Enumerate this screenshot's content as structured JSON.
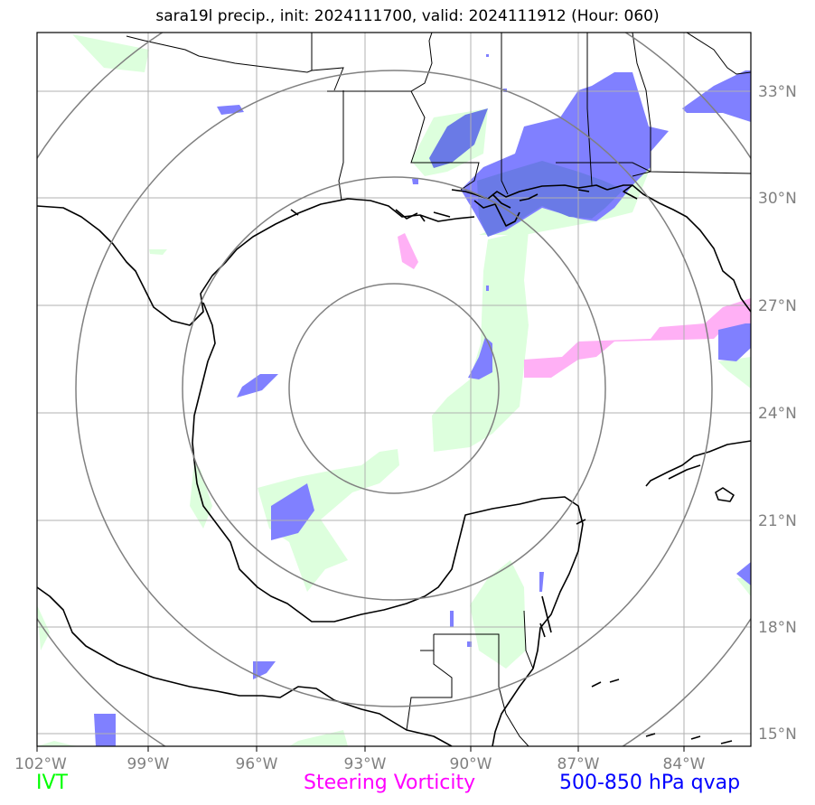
{
  "title": "sara19l precip., init: 2024111700, valid: 2024111912 (Hour: 060)",
  "map": {
    "lon_labels": [
      "102°W",
      "99°W",
      "96°W",
      "93°W",
      "90°W",
      "87°W",
      "84°W"
    ],
    "lat_labels": [
      "33°N",
      "30°N",
      "27°N",
      "24°N",
      "21°N",
      "18°N",
      "15°N"
    ]
  },
  "legend": {
    "ivt": {
      "label": "IVT",
      "color": "#00ff00"
    },
    "vorticity": {
      "label": "Steering Vorticity",
      "color": "#ff00ff"
    },
    "qvap": {
      "label": "500-850 hPa qvap",
      "color": "#0000ff"
    }
  },
  "colors": {
    "ivt_fill": "#ddffdd",
    "vort_fill": "#ffb0f5",
    "qvap_fill": "#8080ff",
    "qvap_dark": "#6a7ae6",
    "rings": "#808080",
    "grid": "#b0b0b0"
  }
}
